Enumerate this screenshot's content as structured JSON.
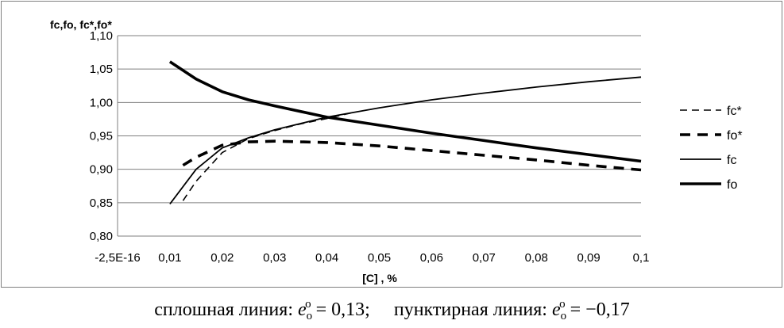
{
  "chart_data": {
    "type": "line",
    "ylabel": "fc,fo, fc*,fo*",
    "xlabel": "[C] , %",
    "ylim": [
      0.8,
      1.1
    ],
    "yticks": [
      "0,80",
      "0,85",
      "0,90",
      "0,95",
      "1,00",
      "1,05",
      "1,10"
    ],
    "ytick_values": [
      0.8,
      0.85,
      0.9,
      0.95,
      1.0,
      1.05,
      1.1
    ],
    "xtick_labels": [
      "-2,5E-16",
      "0,01",
      "0,02",
      "0,03",
      "0,04",
      "0,05",
      "0,06",
      "0,07",
      "0,08",
      "0,09",
      "0,1"
    ],
    "grid": "horizontal",
    "legend_position": "right",
    "series": [
      {
        "name": "fc*",
        "style": "dashed-thin",
        "x": [
          0.0125,
          0.015,
          0.02,
          0.025,
          0.03,
          0.035,
          0.04,
          0.045
        ],
        "y": [
          0.853,
          0.882,
          0.925,
          0.946,
          0.958,
          0.968,
          0.976,
          0.985
        ]
      },
      {
        "name": "fo*",
        "style": "dashed-thick",
        "x": [
          0.0125,
          0.015,
          0.02,
          0.025,
          0.03,
          0.04,
          0.05,
          0.06,
          0.07,
          0.08,
          0.09,
          0.1
        ],
        "y": [
          0.906,
          0.918,
          0.936,
          0.941,
          0.942,
          0.94,
          0.935,
          0.928,
          0.921,
          0.914,
          0.906,
          0.899
        ]
      },
      {
        "name": "fc",
        "style": "solid-thin",
        "x": [
          0.01,
          0.015,
          0.02,
          0.025,
          0.03,
          0.04,
          0.05,
          0.06,
          0.07,
          0.08,
          0.09,
          0.1
        ],
        "y": [
          0.848,
          0.9,
          0.932,
          0.947,
          0.959,
          0.978,
          0.992,
          1.004,
          1.014,
          1.023,
          1.031,
          1.038
        ]
      },
      {
        "name": "fo",
        "style": "solid-thick",
        "x": [
          0.01,
          0.015,
          0.02,
          0.025,
          0.03,
          0.04,
          0.05,
          0.06,
          0.07,
          0.08,
          0.09,
          0.1
        ],
        "y": [
          1.061,
          1.035,
          1.016,
          1.004,
          0.995,
          0.978,
          0.966,
          0.954,
          0.943,
          0.932,
          0.922,
          0.912
        ]
      }
    ]
  },
  "caption": {
    "left_text": "сплошная линия: ",
    "left_value": "= 0,13;",
    "right_text": "пунктирная линия: ",
    "right_value": "= −0,17",
    "sym_e": "e",
    "sym_sub": "o",
    "sym_sup": "o"
  }
}
